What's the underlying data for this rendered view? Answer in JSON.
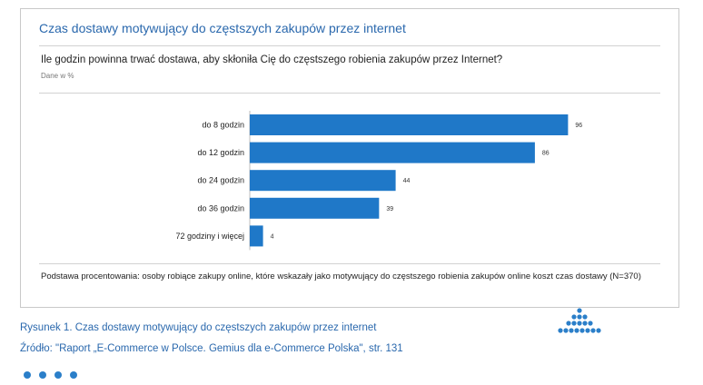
{
  "chart_data": {
    "type": "bar",
    "orientation": "horizontal",
    "title": "Czas dostawy motywujący do częstszych zakupów przez internet",
    "subtitle": "Ile godzin powinna trwać dostawa, aby skłoniła Cię do częstszego robienia zakupów przez Internet?",
    "unit_note": "Dane w %",
    "categories": [
      "do 8 godzin",
      "do 12 godzin",
      "do 24 godzin",
      "do 36 godzin",
      "72 godziny i więcej"
    ],
    "values": [
      96,
      86,
      44,
      39,
      4
    ],
    "xlim": [
      0,
      100
    ],
    "grid": false,
    "bar_color": "#1f78c8",
    "base_note": "Podstawa procentowania: osoby robiące zakupy online, które wskazały jako motywujący do częstszego robienia zakupów online koszt czas dostawy (N=370)"
  },
  "caption": {
    "figure": "Rysunek 1. Czas dostawy motywujący do częstszych zakupów przez internet",
    "source": "Źródło: \"Raport „E-Commerce w Polsce. Gemius dla e-Commerce Polska\", str. 131"
  },
  "colors": {
    "title": "#2a68ad",
    "bar": "#1f78c8",
    "accent_dots": "#2b7fc9"
  }
}
